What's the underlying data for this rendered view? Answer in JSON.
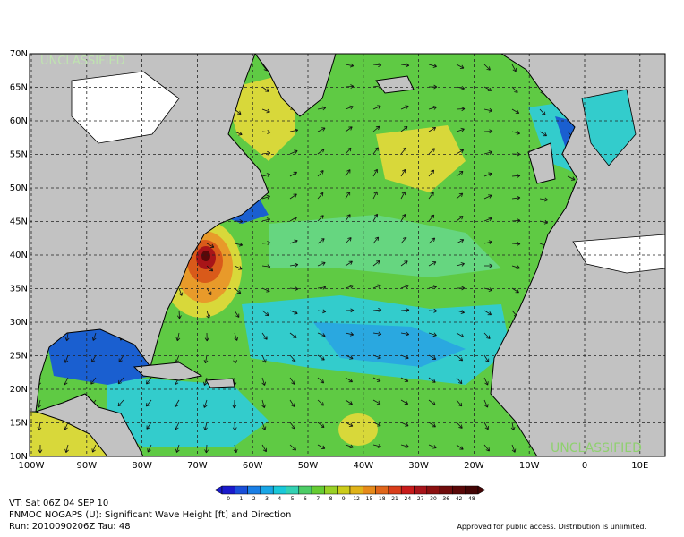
{
  "map": {
    "lat_labels": [
      "70N",
      "65N",
      "60N",
      "55N",
      "50N",
      "45N",
      "40N",
      "35N",
      "30N",
      "25N",
      "20N",
      "15N",
      "10N"
    ],
    "lon_labels": [
      "100W",
      "90W",
      "80W",
      "70W",
      "60W",
      "50W",
      "40W",
      "30W",
      "20W",
      "10W",
      "0",
      "10E"
    ],
    "watermark_top": "UNCLASSIFIED",
    "watermark_bottom": "UNCLASSIFIED"
  },
  "colorbar": {
    "labels": [
      "0",
      "1",
      "2",
      "3",
      "4",
      "5",
      "6",
      "7",
      "8",
      "9",
      "12",
      "15",
      "18",
      "21",
      "24",
      "27",
      "30",
      "36",
      "42",
      "48"
    ],
    "colors": [
      "#1a1acc",
      "#1a4fd9",
      "#1a7fe6",
      "#19a6e6",
      "#19c8d9",
      "#33d1b3",
      "#4dcc66",
      "#66cc33",
      "#99d126",
      "#cccc1a",
      "#e0b31a",
      "#e68a1a",
      "#e0661a",
      "#d93d1a",
      "#c81a1a",
      "#a8141a",
      "#8c1010",
      "#700c0c",
      "#5a0808",
      "#440505"
    ]
  },
  "footer": {
    "valid_time": "VT: Sat 06Z 04 SEP 10",
    "product": "FNMOC NOGAPS (U): Significant Wave Height [ft] and Direction",
    "run": "Run: 2010090206Z Tau: 48",
    "release": "Approved for public access. Distribution is unlimited."
  }
}
